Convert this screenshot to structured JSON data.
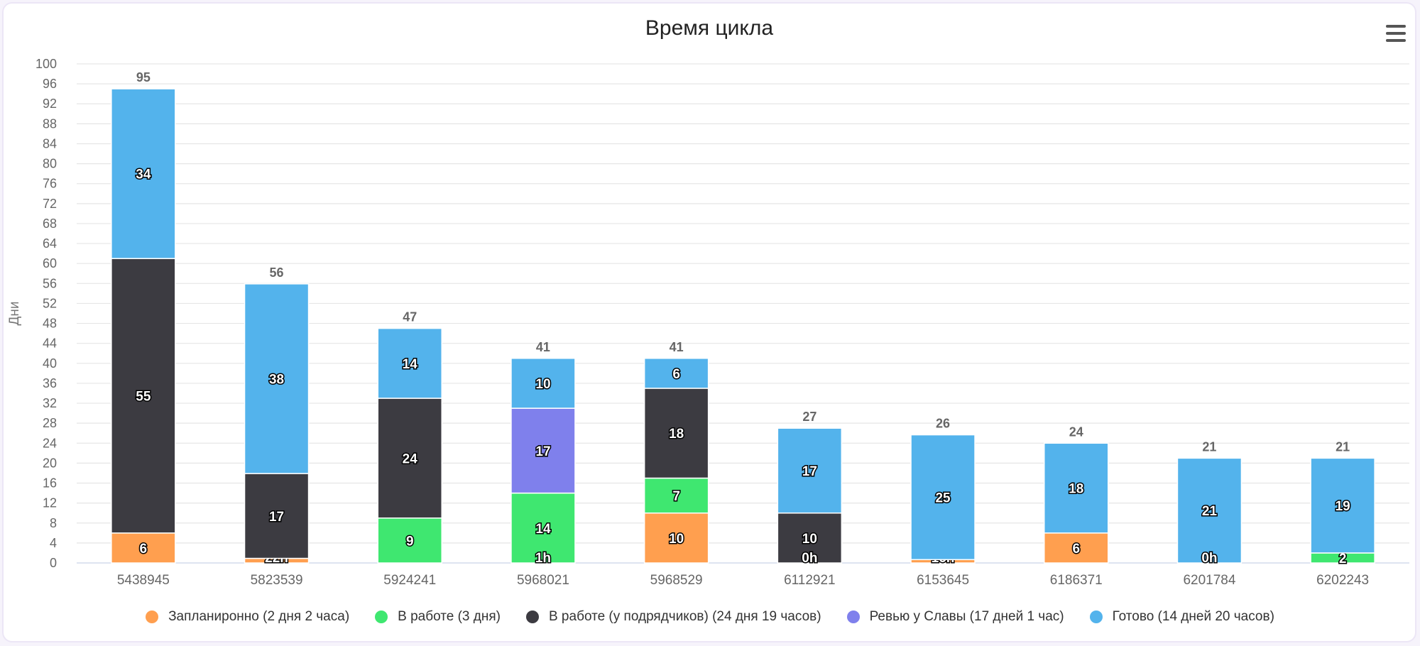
{
  "chart_data": {
    "type": "bar",
    "stacked": true,
    "title": "Время цикла",
    "xlabel": "",
    "ylabel": "Дни",
    "ylim": [
      0,
      100
    ],
    "ytick_step": 4,
    "grid": true,
    "legend_position": "bottom",
    "categories": [
      "5438945",
      "5823539",
      "5924241",
      "5968021",
      "5968529",
      "6112921",
      "6153645",
      "6186371",
      "6201784",
      "6202243"
    ],
    "totals": [
      "95",
      "56",
      "47",
      "41",
      "41",
      "27",
      "26",
      "24",
      "21",
      "21"
    ],
    "series": [
      {
        "name": "Запланиронно (2 дня 2 часа)",
        "color": "#ff9f4f",
        "values": [
          6,
          0.92,
          0,
          0,
          10,
          0,
          0.67,
          6,
          0,
          0
        ],
        "labels": [
          "6",
          "22h",
          "",
          "",
          "10",
          "",
          "16h",
          "6",
          "",
          ""
        ]
      },
      {
        "name": "В работе (3 дня)",
        "color": "#3fe770",
        "values": [
          0,
          0,
          9,
          14,
          7,
          0,
          0,
          0,
          0,
          2
        ],
        "labels": [
          "",
          "",
          "9",
          "14",
          "7",
          "",
          "",
          "",
          "",
          "2"
        ],
        "extra_labels": [
          "",
          "",
          "",
          "1h",
          "",
          "",
          "",
          "",
          "",
          ""
        ]
      },
      {
        "name": "В работе (у подрядчиков) (24 дня 19 часов)",
        "color": "#3c3b41",
        "values": [
          55,
          17,
          24,
          0,
          18,
          10,
          0,
          0,
          0,
          0
        ],
        "labels": [
          "55",
          "17",
          "24",
          "",
          "18",
          "10",
          "",
          "",
          "",
          ""
        ],
        "extra_labels": [
          "",
          "",
          "",
          "",
          "",
          "0h",
          "",
          "",
          "",
          ""
        ]
      },
      {
        "name": "Ревью у Славы (17 дней 1 час)",
        "color": "#7f80ec",
        "values": [
          0,
          0,
          0,
          17,
          0,
          0,
          0,
          0,
          0,
          0
        ],
        "labels": [
          "",
          "",
          "",
          "17",
          "",
          "",
          "",
          "",
          "",
          ""
        ]
      },
      {
        "name": "Готово (14 дней 20 часов)",
        "color": "#53b3ec",
        "values": [
          34,
          38,
          14,
          10,
          6,
          17,
          25,
          18,
          21,
          19
        ],
        "labels": [
          "34",
          "38",
          "14",
          "10",
          "6",
          "17",
          "25",
          "18",
          "21",
          "19"
        ],
        "extra_labels": [
          "",
          "",
          "",
          "",
          "",
          "",
          "",
          "",
          "0h",
          ""
        ]
      }
    ]
  },
  "menu_icon": "hamburger-icon"
}
